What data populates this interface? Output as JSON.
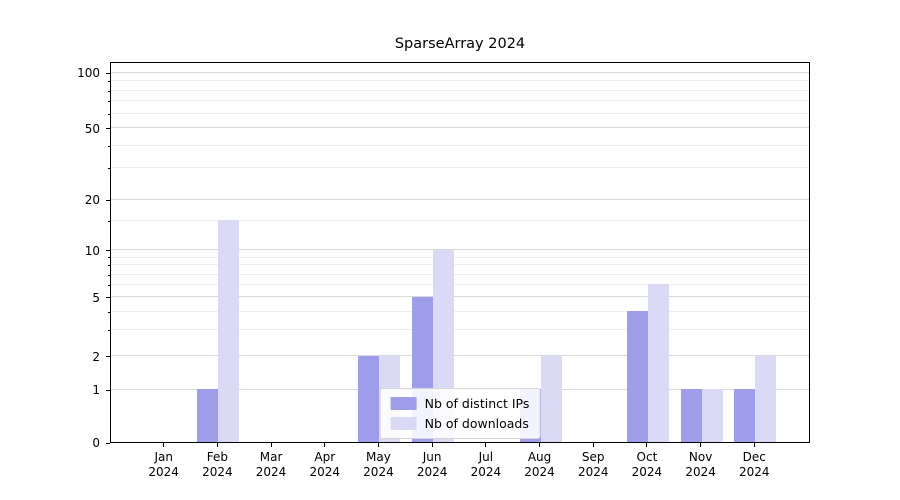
{
  "chart_data": {
    "type": "bar",
    "title": "SparseArray 2024",
    "categories": [
      "Jan",
      "Feb",
      "Mar",
      "Apr",
      "May",
      "Jun",
      "Jul",
      "Aug",
      "Sep",
      "Oct",
      "Nov",
      "Dec"
    ],
    "x_year": "2024",
    "series": [
      {
        "key": "distinct-ips",
        "name": "Nb of distinct IPs",
        "color": "#9d9dea",
        "values": [
          0,
          1,
          0,
          0,
          2,
          5,
          0,
          1,
          0,
          4,
          1,
          1
        ]
      },
      {
        "key": "downloads",
        "name": "Nb of downloads",
        "color": "#dadaf7",
        "values": [
          0,
          15,
          0,
          0,
          2,
          10,
          0,
          2,
          0,
          6,
          1,
          2
        ]
      }
    ],
    "yticks": [
      0,
      1,
      2,
      5,
      10,
      20,
      50,
      100
    ],
    "minor_yticks": [
      3,
      4,
      6,
      7,
      8,
      9,
      15,
      30,
      40,
      60,
      70,
      80,
      90
    ],
    "scale": "symlog",
    "grid": true,
    "legend_position": "lower center",
    "colors": {
      "major_grid": "#d9d9d9",
      "minor_grid": "#ededed",
      "axis": "#000000"
    }
  }
}
